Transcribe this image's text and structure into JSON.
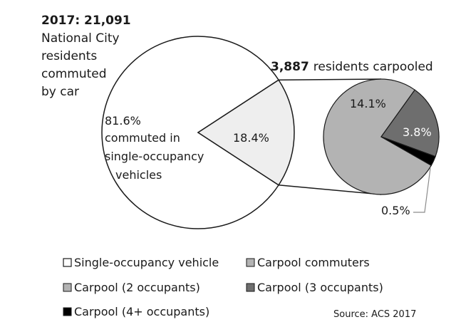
{
  "chart_data": {
    "type": "pie",
    "title_year": "2017: 21,091",
    "title_lines": [
      "National City",
      "residents",
      "commuted",
      "by car"
    ],
    "main_pie": {
      "slices": [
        {
          "name": "Single-occupancy vehicle",
          "value": 81.6,
          "label": "81.6%",
          "sublabel_lines": [
            "commuted in",
            "single-occupancy",
            "vehicles"
          ],
          "color": "#ffffff"
        },
        {
          "name": "Carpool commuters",
          "value": 18.4,
          "label": "18.4%",
          "color": "#eeeeee"
        }
      ]
    },
    "detail_pie": {
      "header_value": "3,887",
      "header_text": "residents carpooled",
      "slices": [
        {
          "name": "Carpool (2 occupants)",
          "value": 14.1,
          "label": "14.1%",
          "color": "#b3b3b3"
        },
        {
          "name": "Carpool (3 occupants)",
          "value": 3.8,
          "label": "3.8%",
          "color": "#6e6e6e"
        },
        {
          "name": "Carpool (4+ occupants)",
          "value": 0.5,
          "label": "0.5%",
          "color": "#000000"
        }
      ]
    },
    "legend": [
      {
        "name": "Single-occupancy vehicle",
        "color": "#ffffff"
      },
      {
        "name": "Carpool commuters",
        "color": "#b3b3b3"
      },
      {
        "name": "Carpool (2 occupants)",
        "color": "#b3b3b3"
      },
      {
        "name": "Carpool (3 occupants)",
        "color": "#6e6e6e"
      },
      {
        "name": "Carpool (4+ occupants)",
        "color": "#000000"
      }
    ],
    "source": "Source: ACS 2017"
  }
}
